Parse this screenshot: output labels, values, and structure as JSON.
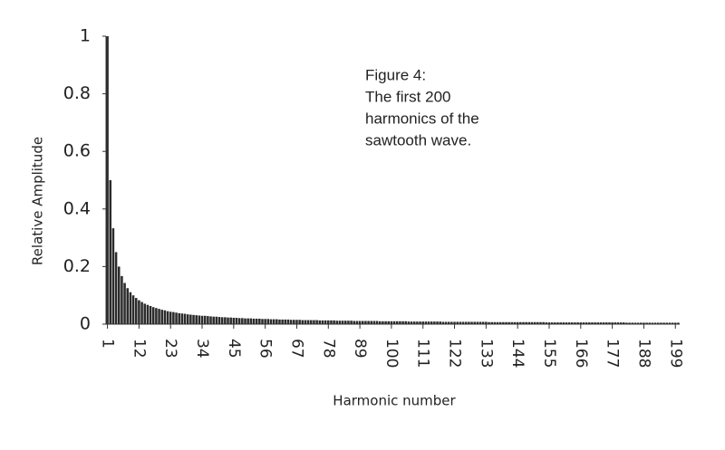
{
  "chart_data": {
    "type": "bar",
    "annotation": [
      "Figure 4:",
      "The first 200",
      "harmonics of the",
      "sawtooth wave."
    ],
    "y_label": "Relative Amplitude",
    "x_label": "Harmonic number",
    "color": "#2b2b2b",
    "categories": [
      "1",
      null,
      null,
      null,
      null,
      null,
      null,
      null,
      null,
      null,
      null,
      "12",
      null,
      null,
      null,
      null,
      null,
      null,
      null,
      null,
      null,
      null,
      "23",
      null,
      null,
      null,
      null,
      null,
      null,
      null,
      null,
      null,
      null,
      "34",
      null,
      null,
      null,
      null,
      null,
      null,
      null,
      null,
      null,
      null,
      "45",
      null,
      null,
      null,
      null,
      null,
      null,
      null,
      null,
      null,
      null,
      "56",
      null,
      null,
      null,
      null,
      null,
      null,
      null,
      null,
      null,
      null,
      "67",
      null,
      null,
      null,
      null,
      null,
      null,
      null,
      null,
      null,
      null,
      "78",
      null,
      null,
      null,
      null,
      null,
      null,
      null,
      null,
      null,
      null,
      "89",
      null,
      null,
      null,
      null,
      null,
      null,
      null,
      null,
      null,
      null,
      "100",
      null,
      null,
      null,
      null,
      null,
      null,
      null,
      null,
      null,
      null,
      "111",
      null,
      null,
      null,
      null,
      null,
      null,
      null,
      null,
      null,
      null,
      "122",
      null,
      null,
      null,
      null,
      null,
      null,
      null,
      null,
      null,
      null,
      "133",
      null,
      null,
      null,
      null,
      null,
      null,
      null,
      null,
      null,
      null,
      "144",
      null,
      null,
      null,
      null,
      null,
      null,
      null,
      null,
      null,
      null,
      "155",
      null,
      null,
      null,
      null,
      null,
      null,
      null,
      null,
      null,
      null,
      "166",
      null,
      null,
      null,
      null,
      null,
      null,
      null,
      null,
      null,
      null,
      "177",
      null,
      null,
      null,
      null,
      null,
      null,
      null,
      null,
      null,
      null,
      "188",
      null,
      null,
      null,
      null,
      null,
      null,
      null,
      null,
      null,
      null,
      "199",
      null
    ],
    "values": [
      1,
      0.5,
      0.333,
      0.25,
      0.2,
      0.167,
      0.143,
      0.125,
      0.111,
      0.1,
      0.091,
      0.083,
      0.077,
      0.071,
      0.067,
      0.063,
      0.059,
      0.056,
      0.053,
      0.05,
      0.048,
      0.045,
      0.043,
      0.042,
      0.04,
      0.038,
      0.037,
      0.036,
      0.034,
      0.033,
      0.032,
      0.031,
      0.03,
      0.029,
      0.029,
      0.028,
      0.027,
      0.026,
      0.026,
      0.025,
      0.024,
      0.024,
      0.023,
      0.023,
      0.022,
      0.022,
      0.021,
      0.021,
      0.02,
      0.02,
      0.02,
      0.019,
      0.019,
      0.019,
      0.018,
      0.018,
      0.018,
      0.017,
      0.017,
      0.017,
      0.016,
      0.016,
      0.016,
      0.016,
      0.015,
      0.015,
      0.015,
      0.015,
      0.014,
      0.014,
      0.014,
      0.014,
      0.014,
      0.014,
      0.013,
      0.013,
      0.013,
      0.013,
      0.013,
      0.013,
      0.012,
      0.012,
      0.012,
      0.012,
      0.012,
      0.012,
      0.011,
      0.011,
      0.011,
      0.011,
      0.011,
      0.011,
      0.011,
      0.011,
      0.011,
      0.01,
      0.01,
      0.01,
      0.01,
      0.01,
      0.01,
      0.01,
      0.01,
      0.01,
      0.01,
      0.009,
      0.009,
      0.009,
      0.009,
      0.009,
      0.009,
      0.009,
      0.009,
      0.009,
      0.009,
      0.009,
      0.009,
      0.008,
      0.008,
      0.008,
      0.008,
      0.008,
      0.008,
      0.008,
      0.008,
      0.008,
      0.008,
      0.008,
      0.008,
      0.008,
      0.008,
      0.008,
      0.008,
      0.007,
      0.007,
      0.007,
      0.007,
      0.007,
      0.007,
      0.007,
      0.007,
      0.007,
      0.007,
      0.007,
      0.007,
      0.007,
      0.007,
      0.007,
      0.007,
      0.007,
      0.007,
      0.007,
      0.007,
      0.006,
      0.006,
      0.006,
      0.006,
      0.006,
      0.006,
      0.006,
      0.006,
      0.006,
      0.006,
      0.006,
      0.006,
      0.006,
      0.006,
      0.006,
      0.006,
      0.006,
      0.006,
      0.006,
      0.006,
      0.006,
      0.006,
      0.006,
      0.006,
      0.006,
      0.006,
      0.006,
      0.006,
      0.005,
      0.005,
      0.005,
      0.005,
      0.005,
      0.005,
      0.005,
      0.005,
      0.005,
      0.005,
      0.005,
      0.005,
      0.005,
      0.005,
      0.005,
      0.005,
      0.005,
      0.005,
      0.005
    ],
    "ylim": [
      0,
      1
    ],
    "yticks": [
      0,
      0.2,
      0.4,
      0.6,
      0.8,
      1
    ],
    "grid": false
  }
}
